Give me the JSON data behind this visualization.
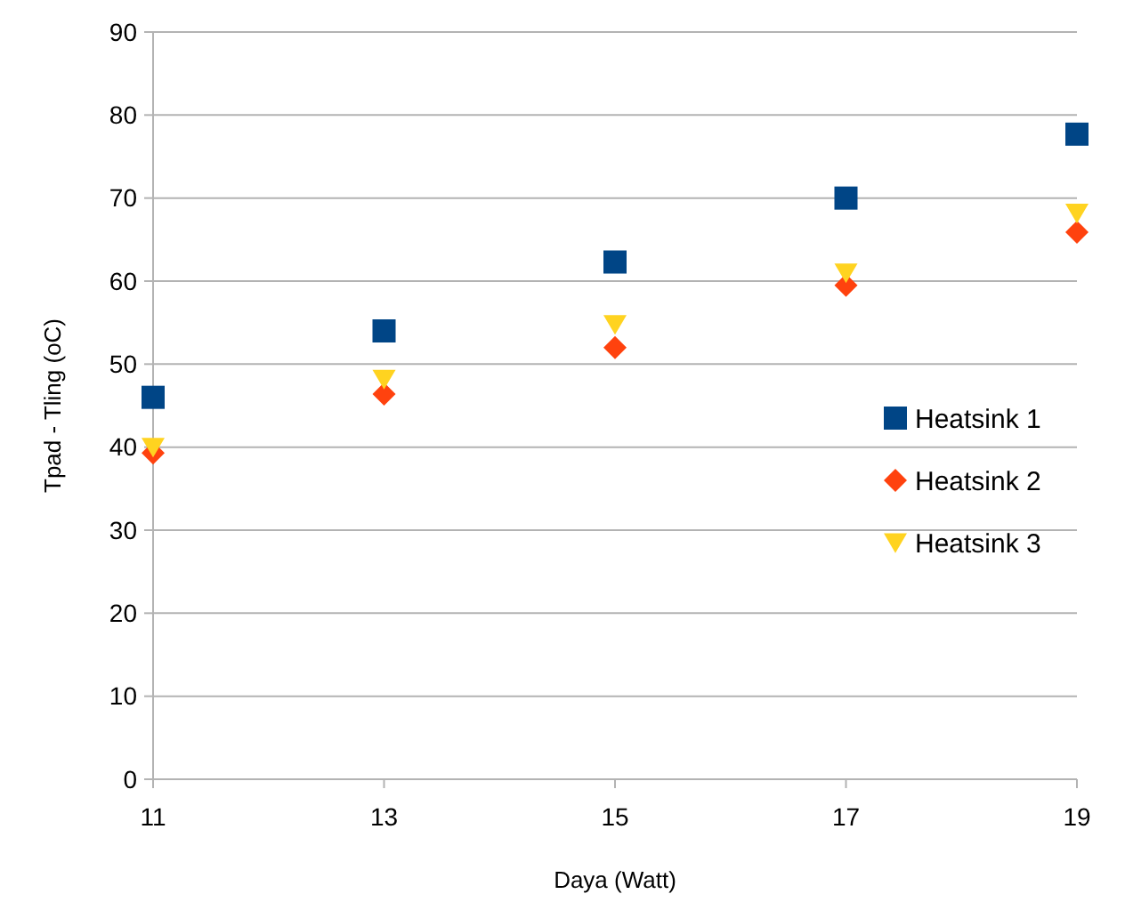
{
  "chart_data": {
    "type": "scatter",
    "xlabel": "Daya (Watt)",
    "ylabel": "Tpad - Tling (oC)",
    "x": [
      11,
      13,
      15,
      17,
      19
    ],
    "series": [
      {
        "name": "Heatsink 1",
        "color": "#004586",
        "marker": "square",
        "values": [
          46,
          54,
          62.3,
          70,
          77.7
        ]
      },
      {
        "name": "Heatsink 2",
        "color": "#ff420e",
        "marker": "diamond",
        "values": [
          39.3,
          46.4,
          52,
          59.5,
          65.9
        ]
      },
      {
        "name": "Heatsink 3",
        "color": "#ffd320",
        "marker": "triangle",
        "values": [
          40,
          48.2,
          54.8,
          61,
          68.2
        ]
      }
    ],
    "xlim": [
      11,
      19
    ],
    "xticks": [
      11,
      13,
      15,
      17,
      19
    ],
    "ylim": [
      0,
      90
    ],
    "yticks": [
      0,
      10,
      20,
      30,
      40,
      50,
      60,
      70,
      80,
      90
    ],
    "grid": "y",
    "legend": "right"
  }
}
